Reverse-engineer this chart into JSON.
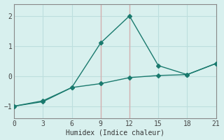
{
  "line1_x": [
    0,
    3,
    6,
    9,
    12,
    15,
    18,
    21
  ],
  "line1_y": [
    -1.0,
    -0.82,
    -0.38,
    1.1,
    2.0,
    0.35,
    0.05,
    0.42
  ],
  "line2_x": [
    0,
    3,
    6,
    9,
    12,
    15,
    18,
    21
  ],
  "line2_y": [
    -1.0,
    -0.85,
    -0.38,
    -0.25,
    -0.05,
    0.02,
    0.05,
    0.42
  ],
  "line_color": "#1a7a6e",
  "bg_color": "#d8f0ee",
  "grid_color": "#bddedd",
  "vline_color": "#d4b0b0",
  "xlabel": "Humidex (Indice chaleur)",
  "xlim": [
    0,
    21
  ],
  "ylim": [
    -1.4,
    2.4
  ],
  "xticks": [
    0,
    3,
    6,
    9,
    12,
    15,
    18,
    21
  ],
  "yticks": [
    -1,
    0,
    1,
    2
  ],
  "marker": "D",
  "markersize": 3.0,
  "linewidth": 1.0
}
